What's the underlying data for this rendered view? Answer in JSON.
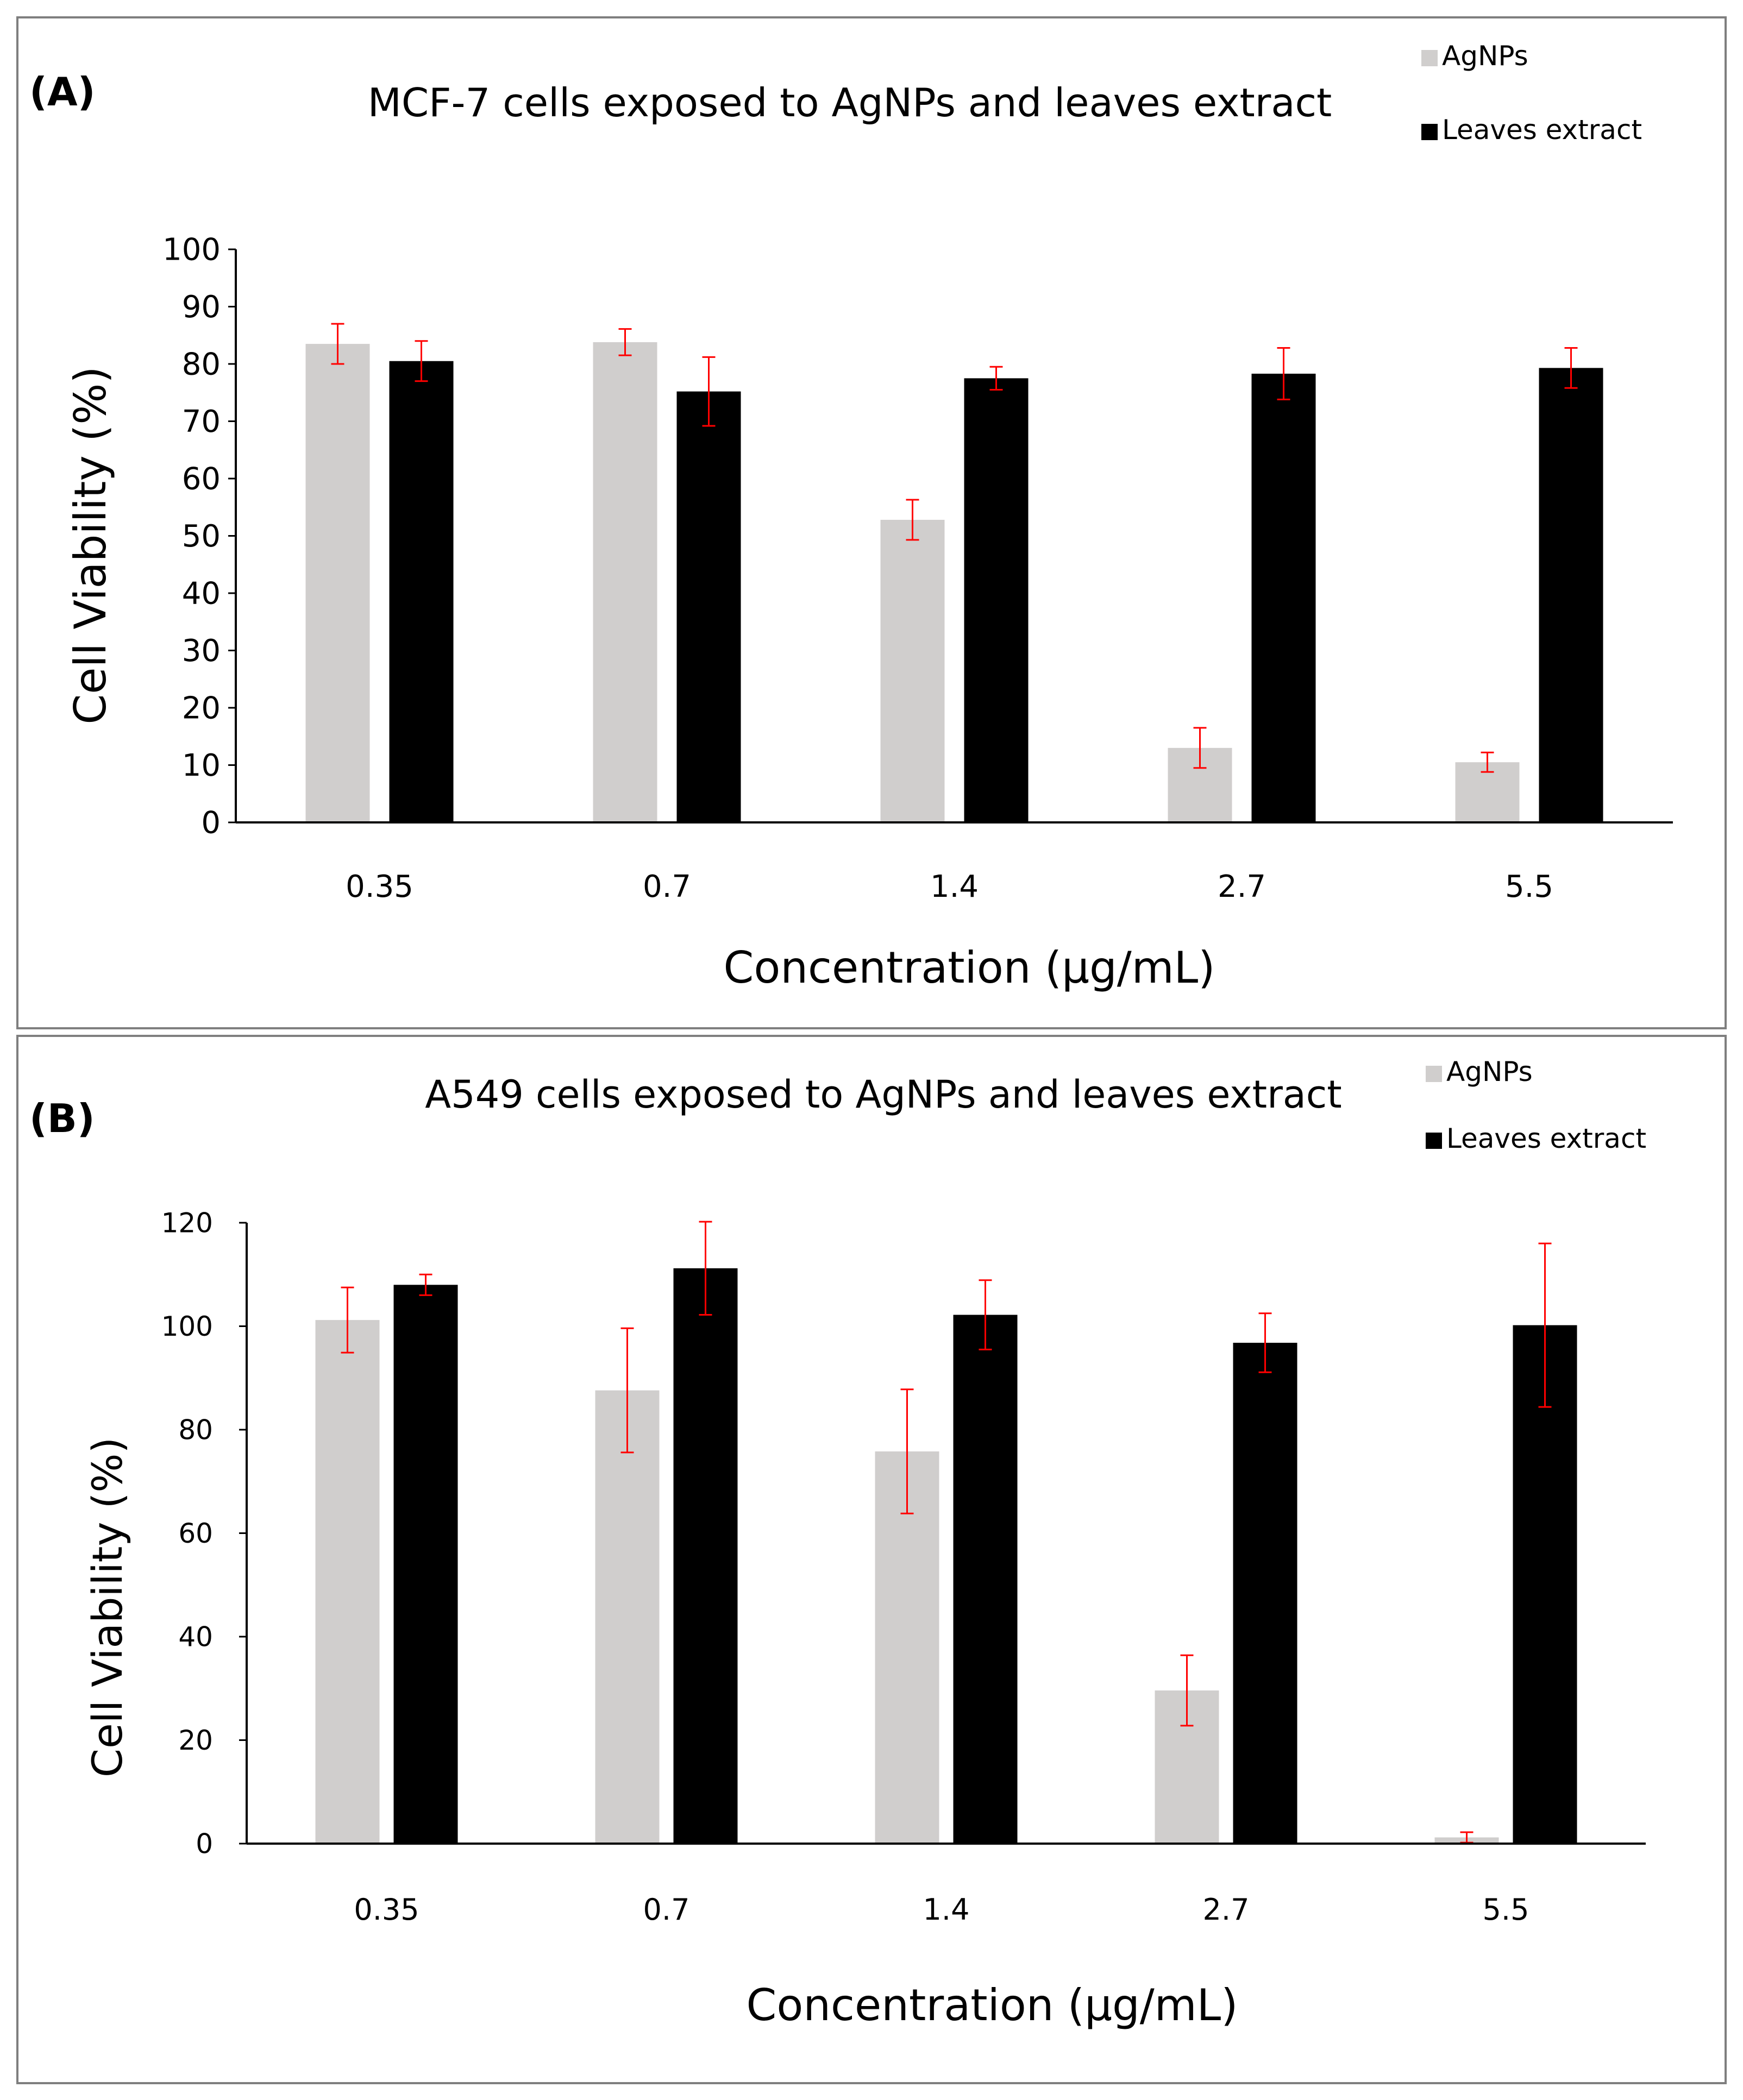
{
  "colors": {
    "agnps": "#d0cecd",
    "leaves": "#000000",
    "error_bar": "#ff0000",
    "axis": "#000000",
    "frame": "#7f7f7f"
  },
  "chart_data": [
    {
      "type": "bar",
      "panel_label": "(A)",
      "title": "MCF-7 cells exposed to AgNPs and leaves extract",
      "xlabel": "Concentration (µg/mL)",
      "ylabel": "Cell Viability (%)",
      "ylim": [
        0,
        100
      ],
      "yticks": [
        "0",
        "10",
        "20",
        "30",
        "40",
        "50",
        "60",
        "70",
        "80",
        "90",
        "100"
      ],
      "categories": [
        "0.35",
        "0.7",
        "1.4",
        "2.7",
        "5.5"
      ],
      "legend_position": "top-right",
      "series": [
        {
          "name": "AgNPs",
          "values": [
            83.5,
            83.8,
            52.8,
            13.0,
            10.5
          ],
          "errors": [
            3.5,
            2.3,
            3.5,
            3.5,
            1.7
          ]
        },
        {
          "name": "Leaves extract",
          "values": [
            80.5,
            75.2,
            77.5,
            78.3,
            79.3
          ],
          "errors": [
            3.5,
            6.0,
            2.0,
            4.5,
            3.5
          ]
        }
      ]
    },
    {
      "type": "bar",
      "panel_label": "(B)",
      "title": "A549 cells exposed to AgNPs and leaves extract",
      "xlabel": "Concentration (µg/mL)",
      "ylabel": "Cell Viability (%)",
      "ylim": [
        0,
        120
      ],
      "yticks": [
        "0",
        "20",
        "40",
        "60",
        "80",
        "100",
        "120"
      ],
      "categories": [
        "0.35",
        "0.7",
        "1.4",
        "2.7",
        "5.5"
      ],
      "legend_position": "top-right",
      "series": [
        {
          "name": "AgNPs",
          "values": [
            101.2,
            87.6,
            75.8,
            29.6,
            1.2
          ],
          "errors": [
            6.3,
            12.0,
            12.0,
            6.8,
            1.0
          ]
        },
        {
          "name": "Leaves extract",
          "values": [
            108.0,
            111.2,
            102.2,
            96.8,
            100.2
          ],
          "errors": [
            2.0,
            9.0,
            6.7,
            5.7,
            15.8
          ]
        }
      ]
    }
  ]
}
